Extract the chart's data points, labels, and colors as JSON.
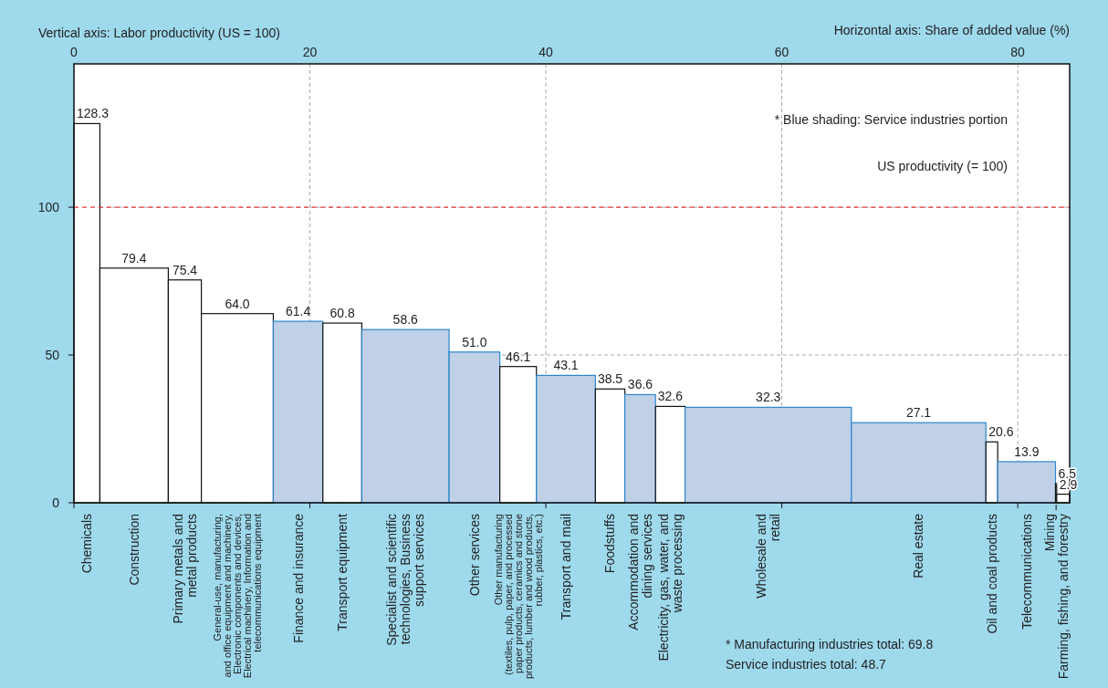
{
  "chart_data": {
    "type": "histogram",
    "xlabel": "Horizontal axis: Share of added value (%)",
    "ylabel": "Vertical axis: Labor productivity (US = 100)",
    "bins": [
      0,
      2.2,
      8.0,
      10.8,
      16.9,
      21.1,
      24.4,
      31.8,
      36.1,
      39.2,
      44.2,
      46.7,
      49.3,
      51.8,
      65.9,
      77.3,
      78.3,
      83.2,
      83.3,
      84.4
    ],
    "values": [
      128.3,
      79.4,
      75.4,
      64.0,
      61.4,
      60.8,
      58.6,
      51.0,
      46.1,
      43.1,
      38.5,
      36.6,
      32.6,
      32.3,
      27.1,
      20.6,
      13.9,
      6.5,
      2.9
    ],
    "categories": [
      "Chemicals",
      "Construction",
      "Primary metals and\nmetal products",
      "General-use, manufacturing,\nand office equipment and machinery,\nElectronic components and devices,\nElectrical machinery, Information and\ntelecommunications equipment",
      "Finance and insurance",
      "Transport equipment",
      "Specialist and scientific\ntechnologies, Business\nsupport services",
      "Other services",
      "Other manufacturing\n(textiles, pulp, paper, and processed\npaper products, ceramics and stone\nproducts, lumber and wood products,\nrubber, plastics, etc.)",
      "Transport and mail",
      "Foodstuffs",
      "Accommodation and\ndining services",
      "Electricity, gas, water, and\nwaste processing",
      "Wholesale and\nretail",
      "Real estate",
      "Oil and coal products",
      "Telecommunications",
      "Mining",
      "Farming, fishing, and forestry"
    ],
    "colors": [
      "#ffffff",
      "#ffffff",
      "#ffffff",
      "#ffffff",
      "#c0d0e7",
      "#ffffff",
      "#c0d0e7",
      "#c0d0e7",
      "#ffffff",
      "#c0d0e7",
      "#ffffff",
      "#c0d0e7",
      "#ffffff",
      "#c0d0e7",
      "#c0d0e7",
      "#ffffff",
      "#c0d0e7",
      "#ffffff",
      "#ffffff"
    ],
    "value_labels": [
      "128.3",
      "79.4",
      "75.4",
      "64.0",
      "61.4",
      "60.8",
      "58.6",
      "51.0",
      "46.1",
      "43.1",
      "38.5",
      "36.6",
      "32.6",
      "32.3",
      "27.1",
      "20.6",
      "13.9",
      "6.5",
      "2.9"
    ],
    "xlim": [
      0,
      84.4
    ],
    "xticks": [
      0,
      20,
      40,
      60,
      80
    ],
    "ylim": [
      0,
      148.5
    ],
    "yticks": [
      0,
      50,
      100
    ],
    "grid": true,
    "ref_lines": [
      {
        "axis": "y",
        "value": 100,
        "label": "US productivity (= 100)",
        "color": "#ee3b3b",
        "line_style": "dashed"
      }
    ],
    "annotations": [
      "* Blue shading: Service industries portion",
      "* Manufacturing industries total: 69.8\nService industries total: 48.7"
    ]
  }
}
